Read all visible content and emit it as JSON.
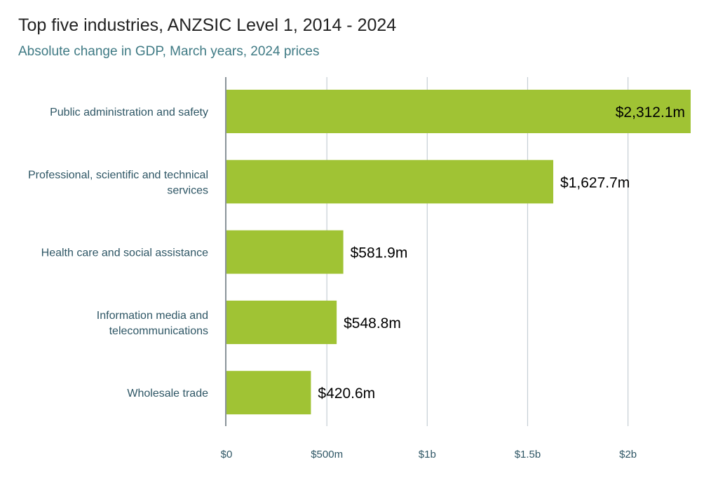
{
  "chart_data": {
    "type": "bar",
    "orientation": "horizontal",
    "title": "Top five industries, ANZSIC Level 1, 2014 - 2024",
    "subtitle": "Absolute change in GDP, March years, 2024 prices",
    "categories": [
      [
        "Public administration and safety"
      ],
      [
        "Professional, scientific and technical",
        "services"
      ],
      [
        "Health care and social assistance"
      ],
      [
        "Information media and",
        "telecommunications"
      ],
      [
        "Wholesale trade"
      ]
    ],
    "values": [
      2312.1,
      1627.7,
      581.9,
      548.8,
      420.6
    ],
    "value_labels": [
      "$2,312.1m",
      "$1,627.7m",
      "$581.9m",
      "$548.8m",
      "$420.6m"
    ],
    "xlim": [
      0,
      2312.1
    ],
    "ticks": [
      0,
      500,
      1000,
      1500,
      2000
    ],
    "tick_labels": [
      "$0",
      "$500m",
      "$1b",
      "$1.5b",
      "$2b"
    ],
    "xlabel": "",
    "ylabel": "",
    "grid": true,
    "bar_color": "#a0c334",
    "grid_color": "#c5ced4",
    "axis_color": "#8a9399"
  }
}
